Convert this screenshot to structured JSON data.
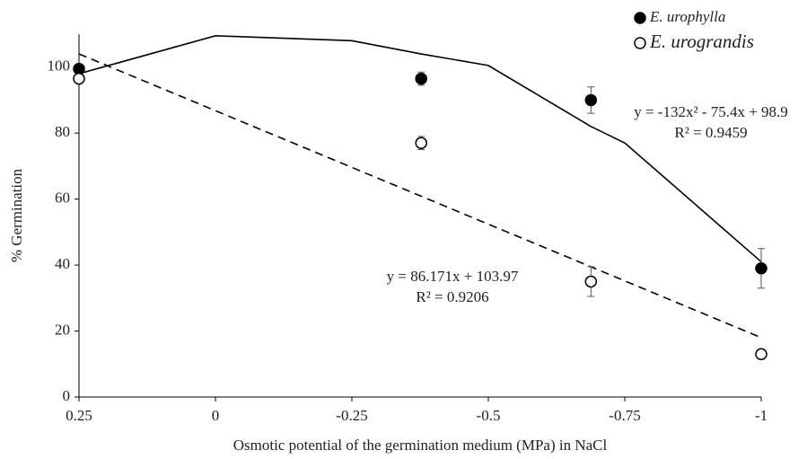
{
  "chart_data": {
    "type": "scatter",
    "x_label": "Osmotic potential of the germination medium (MPa) in NaCl",
    "y_label": "% Germination",
    "xlim": [
      0.25,
      -1
    ],
    "xticks": [
      0.25,
      0,
      -0.25,
      -0.5,
      -0.75,
      -1
    ],
    "ylim": [
      0,
      110
    ],
    "yticks": [
      0,
      20,
      40,
      60,
      80,
      100
    ],
    "series": [
      {
        "name": "E. urophylla",
        "color": "#000000",
        "filled": true,
        "x": [
          0.25,
          -0.377,
          -0.688,
          -1
        ],
        "values": [
          99.5,
          96.5,
          90,
          39
        ],
        "errors": [
          1,
          2,
          4,
          6
        ]
      },
      {
        "name": "E. urograndis",
        "color": "#000000",
        "filled": false,
        "x": [
          0.25,
          -0.377,
          -0.688,
          -1
        ],
        "values": [
          96.5,
          77,
          35,
          13
        ],
        "errors": [
          1,
          2,
          4.5,
          1.5
        ]
      }
    ],
    "trendlines": [
      {
        "dashed": false,
        "x": [
          0.25,
          0,
          -0.25,
          -0.377,
          -0.5,
          -0.688,
          -0.75,
          -1
        ],
        "y": [
          98,
          109.5,
          108,
          104,
          100.5,
          82,
          77,
          41
        ]
      },
      {
        "dashed": true,
        "x": [
          0.25,
          -1
        ],
        "y": [
          104,
          18
        ]
      }
    ],
    "annotations": [
      {
        "text": "y = -132x² - 75.4x + 98.9"
      },
      {
        "text": "R² = 0.9459"
      },
      {
        "text": "y = 86.171x + 103.97"
      },
      {
        "text": "R² = 0.9206"
      }
    ]
  }
}
